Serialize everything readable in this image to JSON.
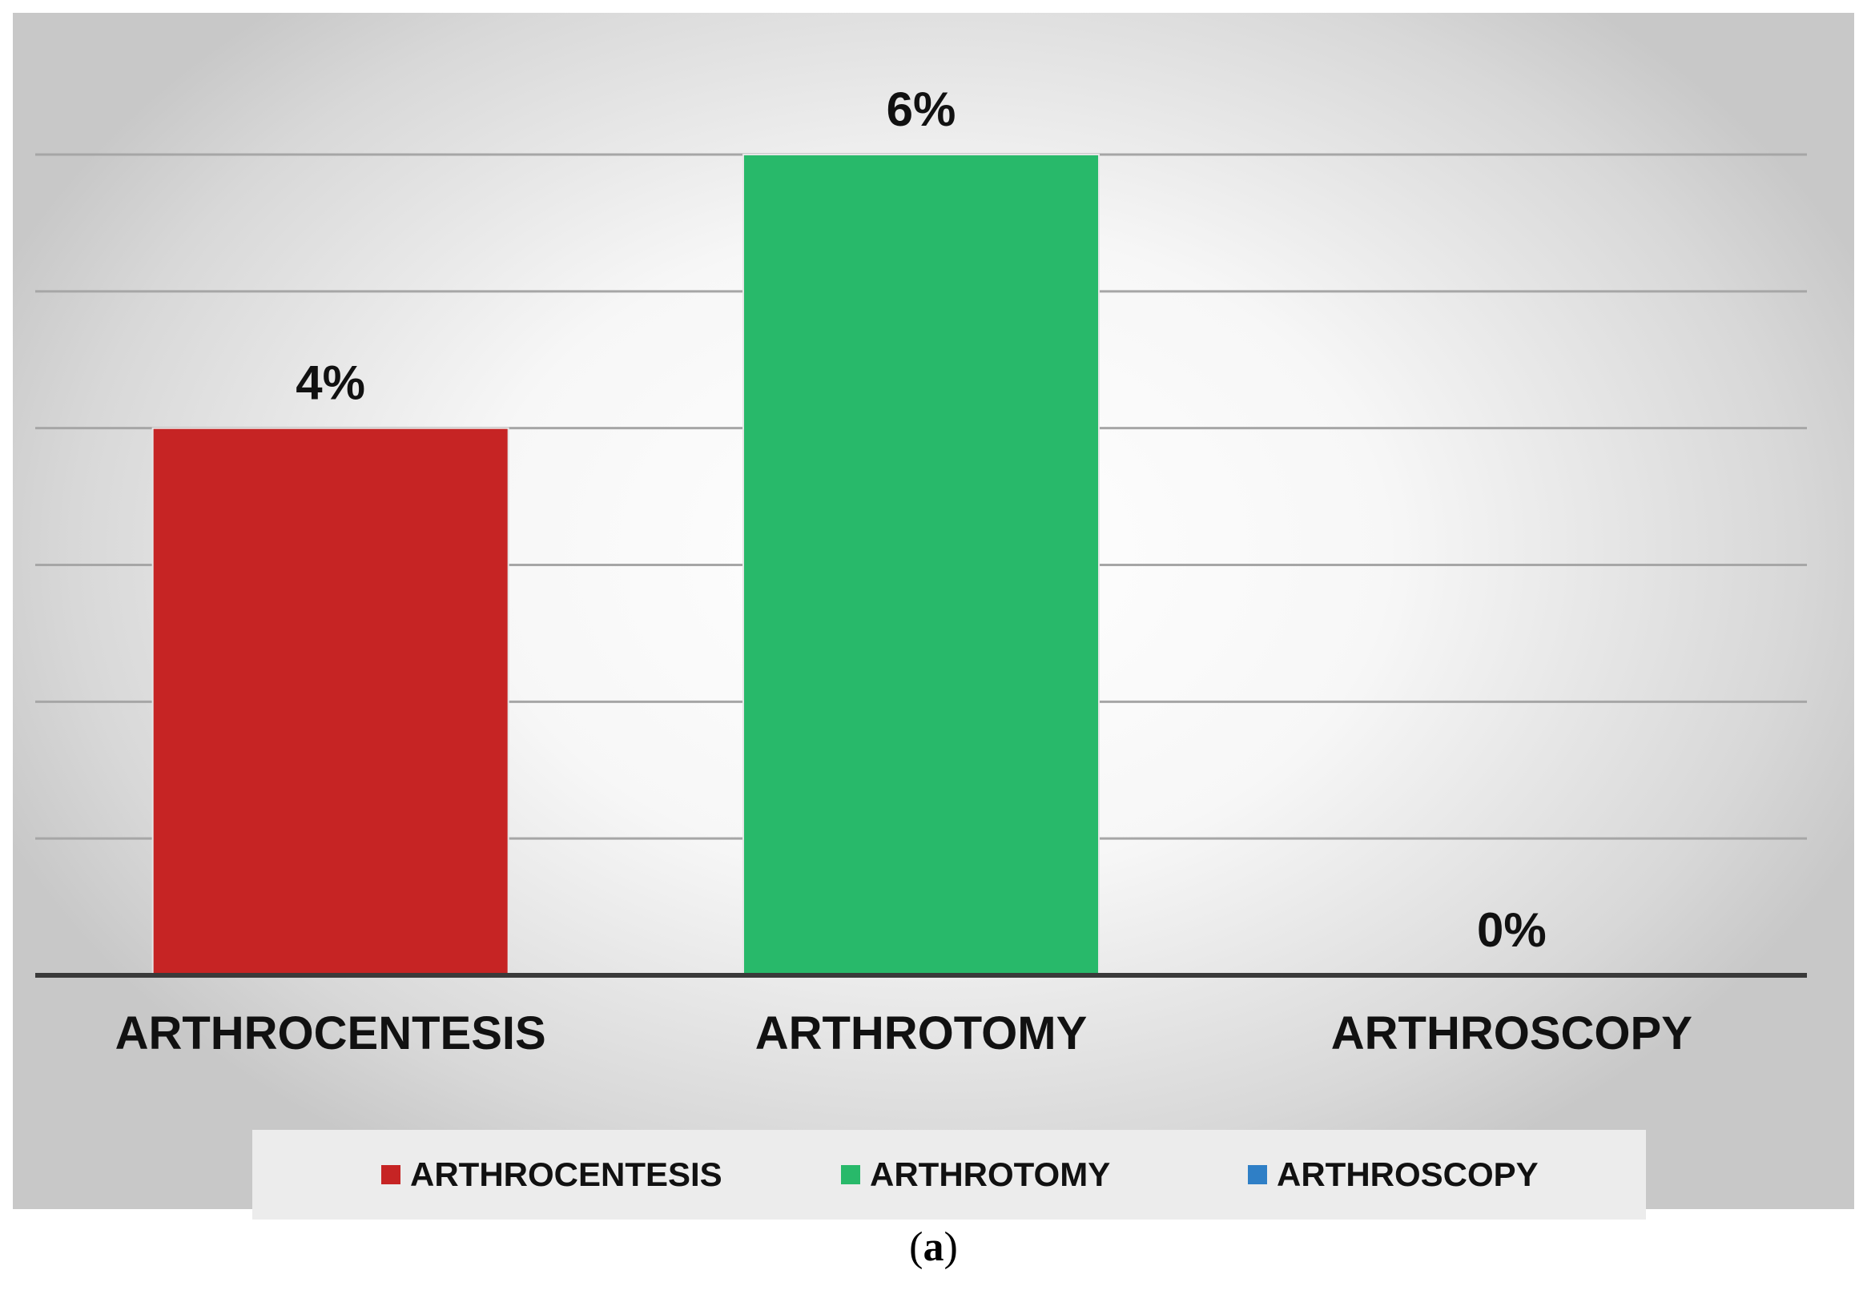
{
  "chart_data": {
    "type": "bar",
    "categories": [
      "ARTHROCENTESIS",
      "ARTHROTOMY",
      "ARTHROSCOPY"
    ],
    "values": [
      4,
      6,
      0
    ],
    "value_labels": [
      "4%",
      "6%",
      "0%"
    ],
    "colors": [
      "#c62424",
      "#28b96a",
      "#2f7fc6"
    ],
    "ylim": [
      0,
      6
    ],
    "gridlines": [
      1,
      2,
      3,
      4,
      5,
      6
    ],
    "grid": true,
    "legend": {
      "placement": "bottom",
      "entries": [
        "ARTHROCENTESIS",
        "ARTHROTOMY",
        "ARTHROSCOPY"
      ]
    },
    "title": "",
    "xlabel": "",
    "ylabel": ""
  },
  "caption": {
    "open": "(",
    "letter": "a",
    "close": ")"
  }
}
